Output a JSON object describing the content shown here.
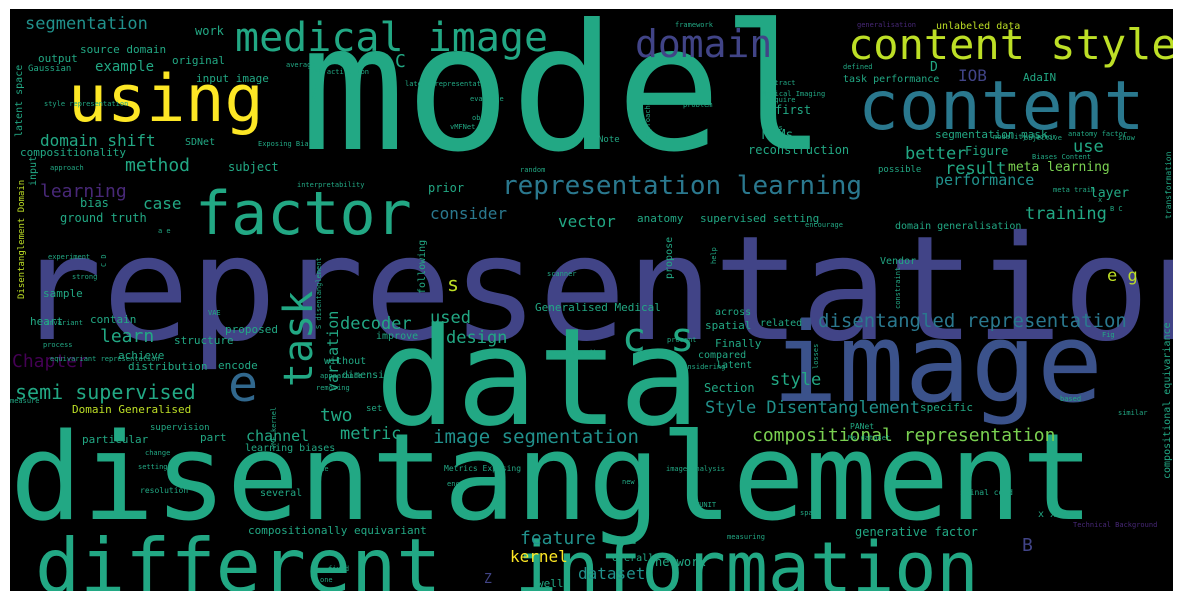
{
  "palette": {
    "teal": "#2a788e",
    "green": "#22a884",
    "mint": "#2ab07f",
    "blue": "#3b528b",
    "indigo": "#414487",
    "purple": "#482878",
    "dark": "#440154",
    "lime": "#7ad151",
    "yellow": "#fde725",
    "yellowgreen": "#bddf26",
    "cyan": "#21918c",
    "slate": "#31688e"
  },
  "words": [
    "model",
    "representation",
    "disentanglement",
    "data",
    "image",
    "different",
    "information",
    "factor",
    "content",
    "using",
    "medical image",
    "content style",
    "domain",
    "representation learning",
    "task",
    "e",
    "c s",
    "disentangled representation",
    "compositional representation",
    "image segmentation",
    "Style Disentanglement",
    "segmentation",
    "semi supervised",
    "method",
    "learning",
    "learn",
    "Chapter",
    "feature",
    "kernel",
    "dataset",
    "two",
    "decoder",
    "metric",
    "design",
    "used",
    "style",
    "performance",
    "training",
    "result",
    "better",
    "use",
    "meta learning",
    "IOB",
    "e g",
    "s",
    "M Ms",
    "case",
    "vector",
    "consider",
    "domain shift",
    "example",
    "C",
    "D",
    "B",
    "Z",
    "variation",
    "channel",
    "compositionality",
    "segmentation mask",
    "reconstruction",
    "first",
    "layer",
    "input image",
    "original",
    "source domain",
    "output",
    "latent space",
    "Gaussian",
    "style representation",
    "AdaIN",
    "task performance",
    "unlabeled data",
    "Medical Imaging",
    "framework",
    "generalisation",
    "work",
    "average",
    "vMF activation",
    "latent representation",
    "evaluate",
    "object",
    "vMFNet",
    "problem",
    "require",
    "extract",
    "defined",
    "SDNet",
    "bias",
    "ground truth",
    "subject",
    "input",
    "Disentanglement Domain",
    "Note",
    "approaches",
    "Figure",
    "modality factor",
    "anatomy factor",
    "prior",
    "anatomy",
    "supervised setting",
    "domain generalisation",
    "Vendor",
    "compositional equivariance",
    "transformation",
    "sample",
    "heart",
    "contain",
    "proposed",
    "achieve",
    "distribution",
    "structure",
    "encode",
    "dimension",
    "without",
    "Domain Generalised",
    "particular",
    "part",
    "learning biases",
    "Generalised Medical",
    "across",
    "spatial",
    "Finally",
    "compared",
    "related",
    "latent",
    "Section",
    "specific",
    "generative factor",
    "compositionally equivariant",
    "network",
    "Overall",
    "well",
    "several",
    "supervision",
    "resolution",
    "spinal cord",
    "Metrics Exposing",
    "encoder",
    "MUNIT",
    "measuring",
    "image analysis",
    "PANet",
    "Ms dataset",
    "Technical Background",
    "x x",
    "strong",
    "experiment",
    "invariant",
    "VAE",
    "improve",
    "following",
    "propose",
    "scanner",
    "help",
    "interpretability",
    "approach",
    "random",
    "meta train",
    "encourage",
    "loss",
    "possible",
    "Biases Content",
    "objective",
    "show",
    "level",
    "process",
    "equivariant representation",
    "change",
    "setting",
    "due",
    "new",
    "based",
    "similar",
    "constraint",
    "losses",
    "present",
    "considering",
    "corresponding",
    "space",
    "Fig",
    "measure",
    "vMF kernel",
    "appearance",
    "removing",
    "set",
    "S disentanglement",
    "Exposing Biases",
    "one",
    "fixed",
    "x",
    "B C",
    "C D",
    "a e"
  ]
}
